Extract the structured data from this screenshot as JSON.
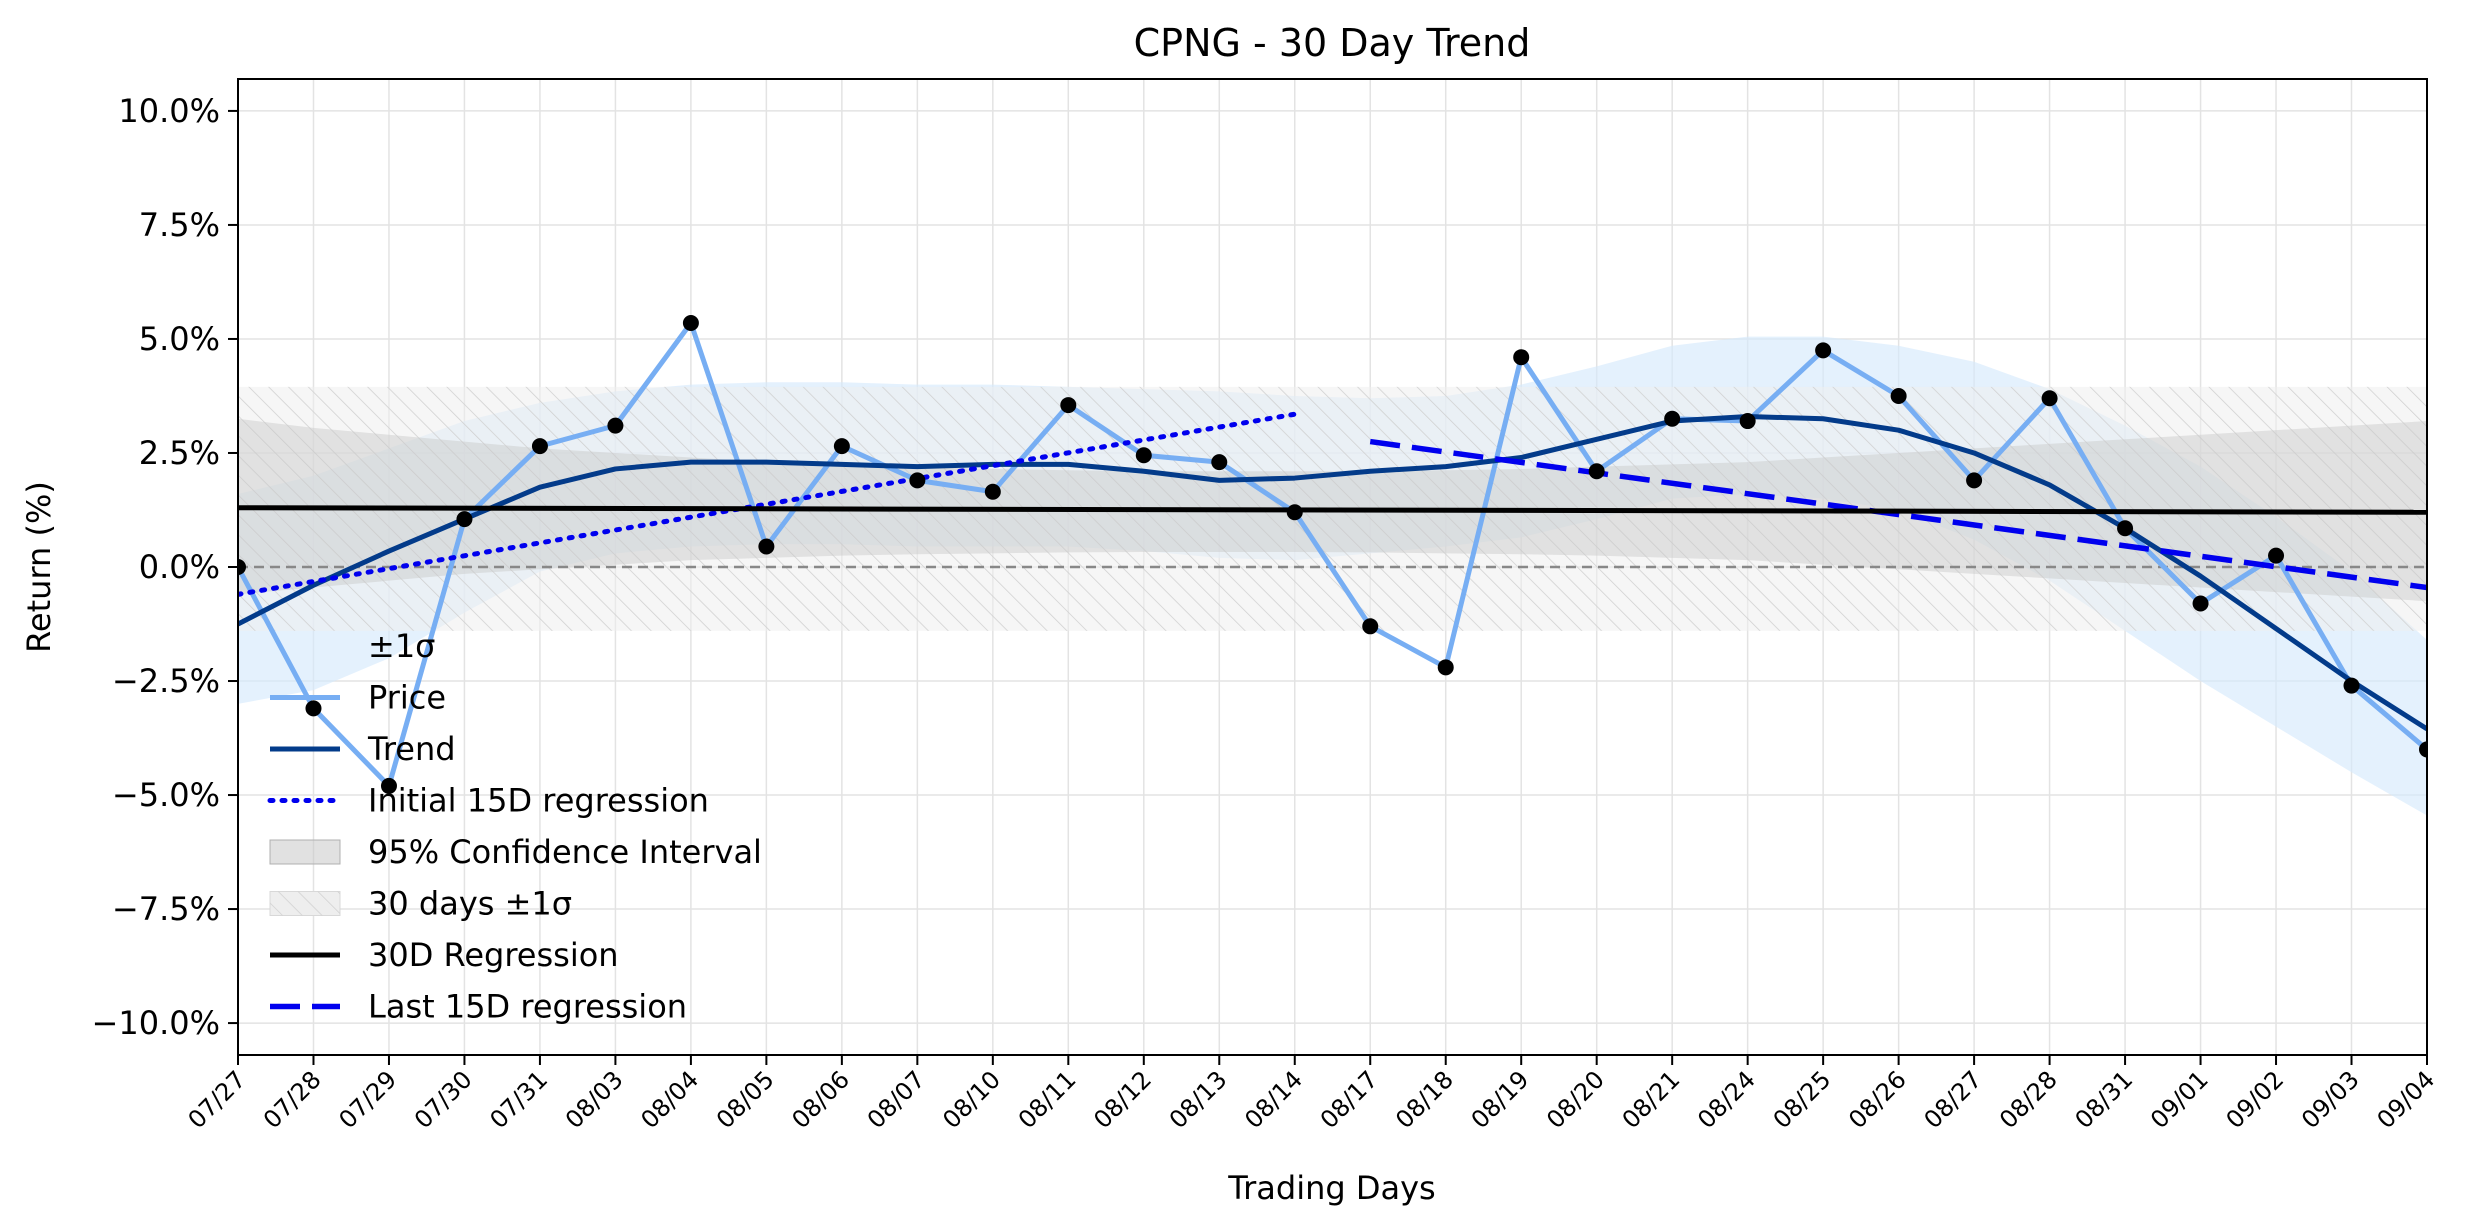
{
  "chart_data": {
    "type": "line",
    "title": "CPNG - 30 Day Trend",
    "xlabel": "Trading Days",
    "ylabel": "Return (%)",
    "ylim": [
      -10.7,
      10.7
    ],
    "yticks": [
      {
        "value": 10,
        "label": "10.0%"
      },
      {
        "value": 7.5,
        "label": "7.5%"
      },
      {
        "value": 5,
        "label": "5.0%"
      },
      {
        "value": 2.5,
        "label": "2.5%"
      },
      {
        "value": 0,
        "label": "0.0%"
      },
      {
        "value": -2.5,
        "label": "−2.5%"
      },
      {
        "value": -5,
        "label": "−5.0%"
      },
      {
        "value": -7.5,
        "label": "−7.5%"
      },
      {
        "value": -10,
        "label": "−10.0%"
      }
    ],
    "grid": true,
    "legend_position": "lower-left",
    "categories": [
      "07/27",
      "07/28",
      "07/29",
      "07/30",
      "07/31",
      "08/03",
      "08/04",
      "08/05",
      "08/06",
      "08/07",
      "08/10",
      "08/11",
      "08/12",
      "08/13",
      "08/14",
      "08/17",
      "08/18",
      "08/19",
      "08/20",
      "08/21",
      "08/24",
      "08/25",
      "08/26",
      "08/27",
      "08/28",
      "08/31",
      "09/01",
      "09/02",
      "09/03",
      "09/04"
    ],
    "series": [
      {
        "name": "Price",
        "color": "#77aef3",
        "values": [
          0.0,
          -3.1,
          -4.8,
          1.05,
          2.65,
          3.1,
          5.35,
          0.45,
          2.65,
          1.9,
          1.65,
          3.55,
          2.45,
          2.3,
          1.2,
          -1.3,
          -2.2,
          4.6,
          2.1,
          3.25,
          3.2,
          4.75,
          3.75,
          1.9,
          3.7,
          0.85,
          -0.8,
          0.25,
          -2.6,
          -4.0
        ]
      },
      {
        "name": "Trend",
        "color": "#033b8a",
        "values": [
          -1.25,
          -0.4,
          0.35,
          1.05,
          1.75,
          2.15,
          2.3,
          2.3,
          2.25,
          2.2,
          2.25,
          2.25,
          2.1,
          1.9,
          1.95,
          2.1,
          2.2,
          2.4,
          2.8,
          3.2,
          3.3,
          3.25,
          3.0,
          2.5,
          1.8,
          0.85,
          -0.2,
          -1.35,
          -2.5,
          -3.55
        ]
      },
      {
        "name": "Initial 15D regression",
        "color": "#0000ee",
        "style": "dotted",
        "x": [
          "07/27",
          "08/14"
        ],
        "values": [
          -0.6,
          3.35
        ]
      },
      {
        "name": "Last 15D regression",
        "color": "#0000ee",
        "style": "dashed",
        "x": [
          "08/17",
          "09/04"
        ],
        "values": [
          2.75,
          -0.45
        ]
      },
      {
        "name": "30D Regression",
        "color": "#000000",
        "style": "solid",
        "x": [
          "07/27",
          "09/04"
        ],
        "values": [
          1.3,
          1.2
        ]
      }
    ],
    "bands": [
      {
        "name": "±1σ",
        "color": "#d6e9fc",
        "upper": [
          1.6,
          2.0,
          2.6,
          3.2,
          3.6,
          3.85,
          4.0,
          4.05,
          4.05,
          4.0,
          4.0,
          3.95,
          3.9,
          3.85,
          3.75,
          3.7,
          3.75,
          4.0,
          4.4,
          4.85,
          5.05,
          5.05,
          4.85,
          4.5,
          3.9,
          3.1,
          2.2,
          1.1,
          -0.1,
          -1.6
        ],
        "lower": [
          -3.0,
          -2.7,
          -2.0,
          -1.0,
          -0.1,
          0.3,
          0.45,
          0.5,
          0.5,
          0.45,
          0.45,
          0.45,
          0.35,
          0.2,
          0.15,
          0.3,
          0.45,
          0.65,
          1.05,
          1.5,
          1.6,
          1.5,
          1.25,
          0.6,
          -0.3,
          -1.4,
          -2.5,
          -3.5,
          -4.5,
          -5.45
        ]
      },
      {
        "name": "95% Confidence Interval",
        "color": "#c8c8c8",
        "upper": [
          3.25,
          3.05,
          2.9,
          2.75,
          2.6,
          2.5,
          2.4,
          2.3,
          2.25,
          2.2,
          2.15,
          2.12,
          2.1,
          2.1,
          2.1,
          2.1,
          2.12,
          2.15,
          2.2,
          2.25,
          2.3,
          2.4,
          2.5,
          2.6,
          2.7,
          2.8,
          2.9,
          3.0,
          3.1,
          3.2
        ],
        "lower": [
          -0.6,
          -0.45,
          -0.3,
          -0.15,
          -0.05,
          0.05,
          0.15,
          0.2,
          0.25,
          0.28,
          0.3,
          0.32,
          0.33,
          0.33,
          0.33,
          0.32,
          0.3,
          0.28,
          0.25,
          0.2,
          0.15,
          0.05,
          -0.05,
          -0.15,
          -0.25,
          -0.35,
          -0.45,
          -0.55,
          -0.65,
          -0.75
        ]
      },
      {
        "name": "30 days ±1σ",
        "color": "#eeeeee",
        "hatched": true,
        "upper_value": 3.95,
        "lower_value": -1.4
      }
    ],
    "reference_line": {
      "value": 0,
      "color": "#888888",
      "style": "dashed"
    },
    "legend": [
      "±1σ",
      "Price",
      "Trend",
      "Initial 15D regression",
      "95% Confidence Interval",
      "30 days ±1σ",
      "30D Regression",
      "Last 15D regression"
    ]
  }
}
